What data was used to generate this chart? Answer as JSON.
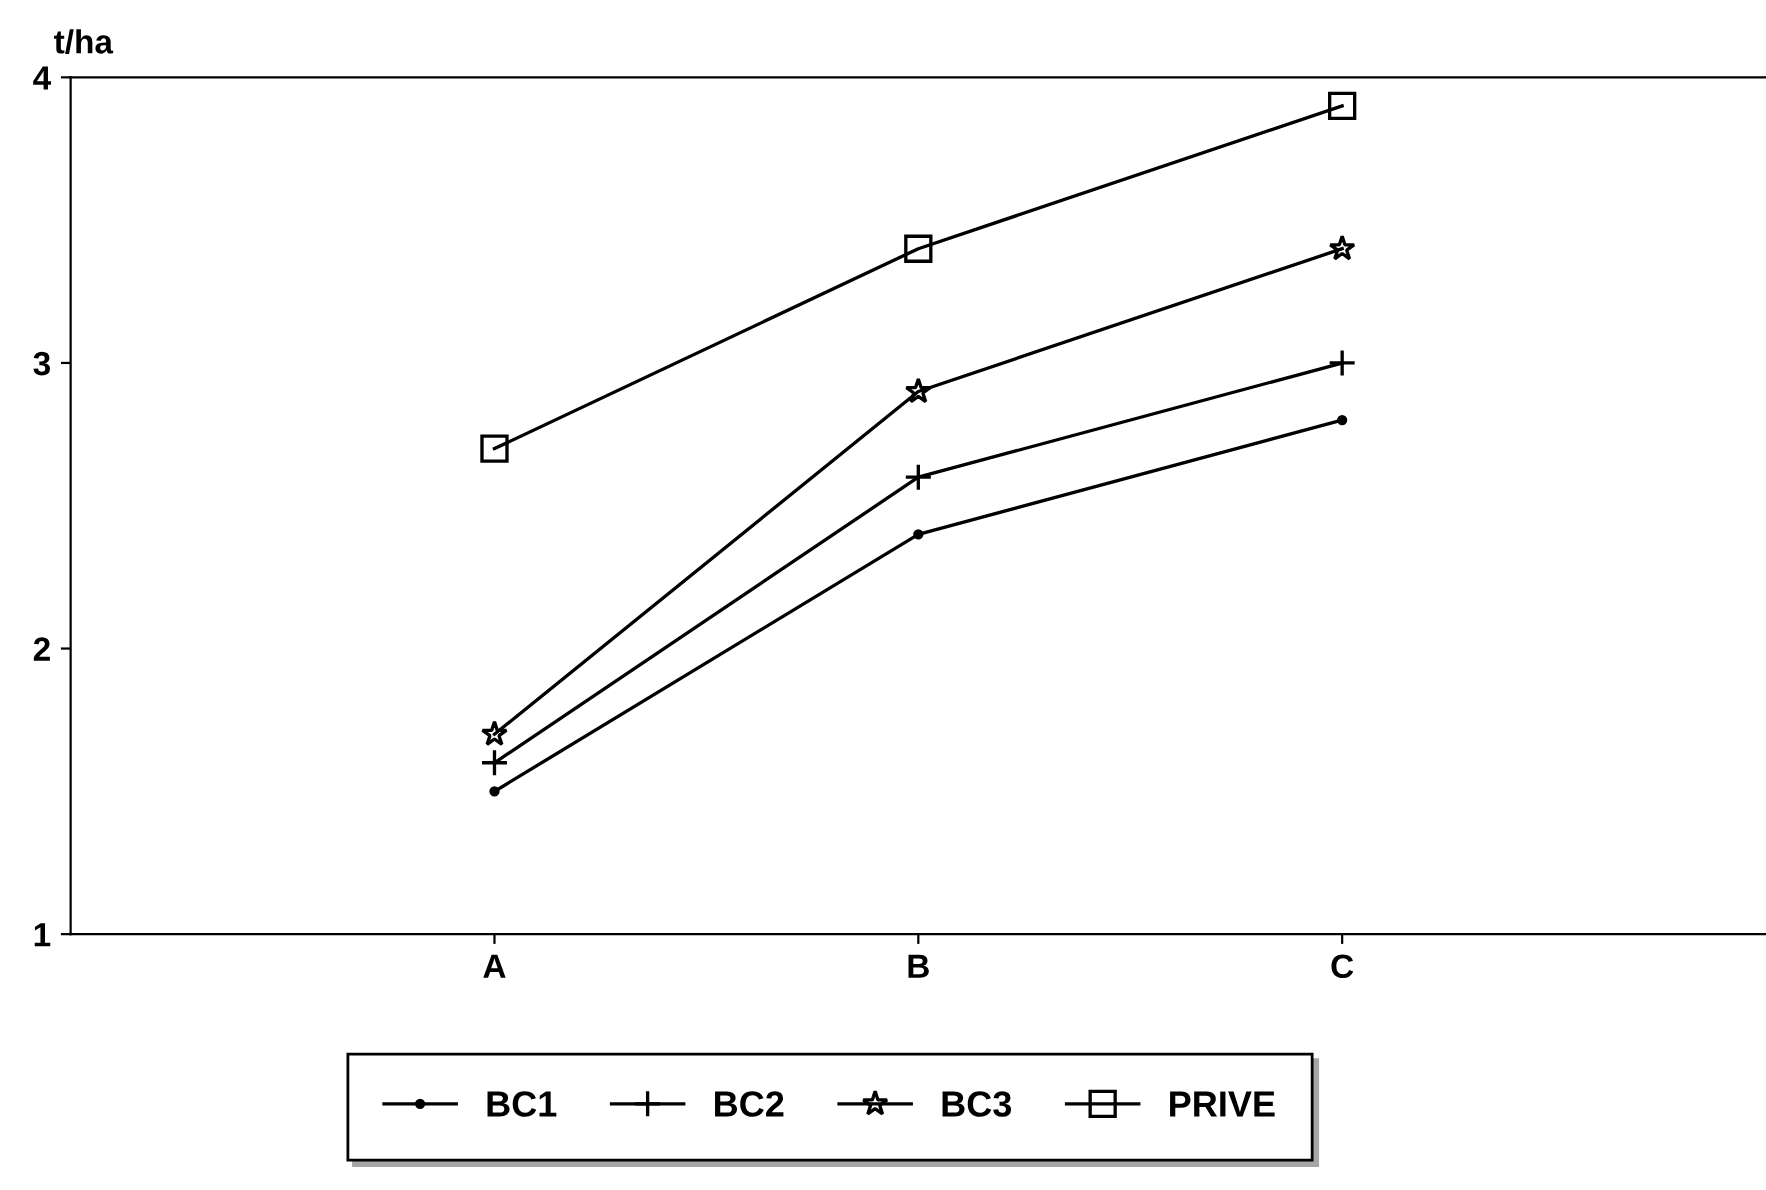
{
  "chart_data": {
    "type": "line",
    "ylabel": "t/ha",
    "categories": [
      "A",
      "B",
      "C"
    ],
    "series": [
      {
        "name": "BC1",
        "color": "#000000",
        "marker": "circle",
        "values": [
          1.5,
          2.4,
          2.8
        ]
      },
      {
        "name": "BC2",
        "color": "#000000",
        "marker": "cross",
        "values": [
          1.6,
          2.6,
          3.0
        ]
      },
      {
        "name": "BC3",
        "color": "#000000",
        "marker": "star",
        "values": [
          1.7,
          2.9,
          3.4
        ]
      },
      {
        "name": "PRIVE",
        "color": "#000000",
        "marker": "square",
        "values": [
          2.7,
          3.4,
          3.9
        ]
      }
    ],
    "ylim": [
      1,
      4
    ],
    "yticks": [
      1,
      2,
      3,
      4
    ],
    "grid": false,
    "legend": "bottom",
    "line_style": "solid"
  }
}
